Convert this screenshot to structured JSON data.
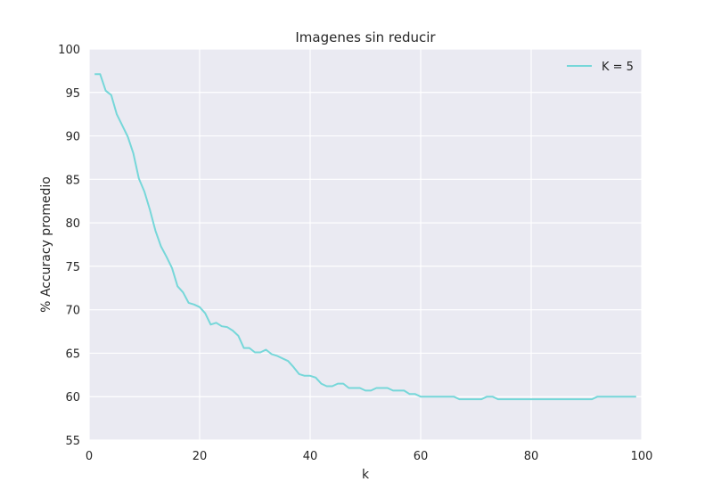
{
  "chart_data": {
    "type": "line",
    "title": "Imagenes sin reducir",
    "xlabel": "k",
    "ylabel": "% Accuracy promedio",
    "xlim": [
      0,
      100
    ],
    "ylim": [
      55,
      100
    ],
    "xticks": [
      0,
      20,
      40,
      60,
      80,
      100
    ],
    "yticks": [
      55,
      60,
      65,
      70,
      75,
      80,
      85,
      90,
      95,
      100
    ],
    "grid": true,
    "background": "#EAEAF2",
    "legend_position": "top-right",
    "series": [
      {
        "name": "K = 5",
        "color": "#76D7D9",
        "x": [
          1,
          2,
          3,
          4,
          5,
          6,
          7,
          8,
          9,
          10,
          11,
          12,
          13,
          14,
          15,
          16,
          17,
          18,
          19,
          20,
          21,
          22,
          23,
          24,
          25,
          26,
          27,
          28,
          29,
          30,
          31,
          32,
          33,
          34,
          35,
          36,
          37,
          38,
          39,
          40,
          41,
          42,
          43,
          44,
          45,
          46,
          47,
          48,
          49,
          50,
          51,
          52,
          53,
          54,
          55,
          56,
          57,
          58,
          59,
          60,
          61,
          62,
          63,
          64,
          65,
          66,
          67,
          68,
          69,
          70,
          71,
          72,
          73,
          74,
          75,
          76,
          77,
          78,
          79,
          80,
          81,
          82,
          83,
          84,
          85,
          86,
          87,
          88,
          89,
          90,
          91,
          92,
          93,
          94,
          95,
          96,
          97,
          98,
          99
        ],
        "y": [
          97.1,
          97.1,
          95.2,
          94.7,
          92.5,
          91.2,
          89.9,
          88.0,
          85.1,
          83.6,
          81.5,
          79.1,
          77.3,
          76.1,
          74.8,
          72.7,
          72.0,
          70.8,
          70.6,
          70.3,
          69.6,
          68.3,
          68.5,
          68.1,
          68.0,
          67.6,
          67.0,
          65.6,
          65.6,
          65.1,
          65.1,
          65.4,
          64.9,
          64.7,
          64.4,
          64.1,
          63.4,
          62.6,
          62.4,
          62.4,
          62.2,
          61.5,
          61.2,
          61.2,
          61.5,
          61.5,
          61.0,
          61.0,
          61.0,
          60.7,
          60.7,
          61.0,
          61.0,
          61.0,
          60.7,
          60.7,
          60.7,
          60.3,
          60.3,
          60.0,
          60.0,
          60.0,
          60.0,
          60.0,
          60.0,
          60.0,
          59.7,
          59.7,
          59.7,
          59.7,
          59.7,
          60.0,
          60.0,
          59.7,
          59.7,
          59.7,
          59.7,
          59.7,
          59.7,
          59.7,
          59.7,
          59.7,
          59.7,
          59.7,
          59.7,
          59.7,
          59.7,
          59.7,
          59.7,
          59.7,
          59.7,
          60.0,
          60.0,
          60.0,
          60.0,
          60.0,
          60.0,
          60.0,
          60.0
        ]
      }
    ]
  }
}
